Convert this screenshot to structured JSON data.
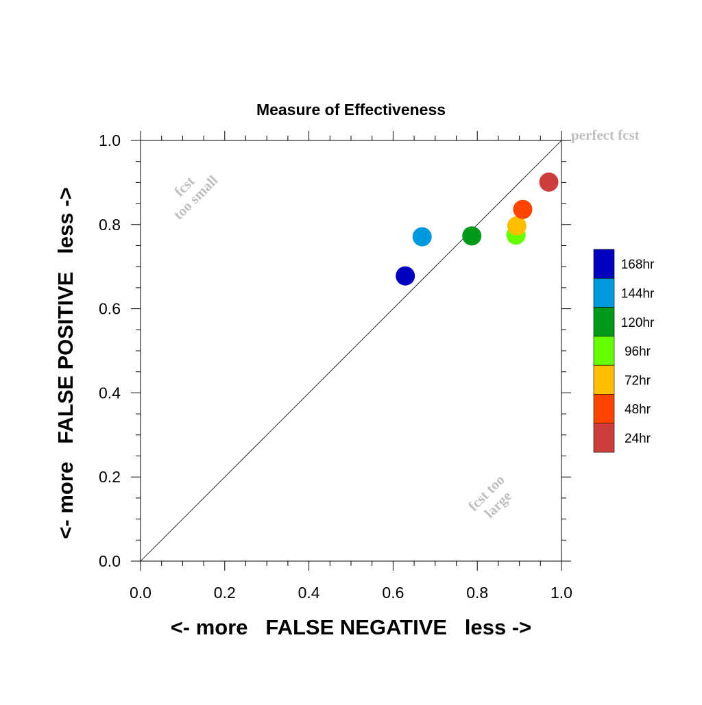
{
  "chart_data": {
    "type": "scatter",
    "title": "Measure of Effectiveness",
    "xlabel": "<- more   FALSE NEGATIVE   less ->",
    "ylabel": "<- more   FALSE POSITIVE   less ->",
    "xlim": [
      0.0,
      1.0
    ],
    "ylim": [
      0.0,
      1.0
    ],
    "xticks": [
      "0.0",
      "0.2",
      "0.4",
      "0.6",
      "0.8",
      "1.0"
    ],
    "yticks": [
      "0.0",
      "0.2",
      "0.4",
      "0.6",
      "0.8",
      "1.0"
    ],
    "grid": false,
    "reference_line": "diagonal y = x",
    "annotations": {
      "perfect": "perfect fcst",
      "too_small": [
        "fcst",
        "too small"
      ],
      "too_large": [
        "fcst too",
        "large"
      ]
    },
    "legend_position": "right",
    "series": [
      {
        "name": "168hr",
        "color": "#0000bf",
        "x": 0.629,
        "y": 0.678
      },
      {
        "name": "144hr",
        "color": "#0099dd",
        "x": 0.669,
        "y": 0.771
      },
      {
        "name": "120hr",
        "color": "#00991a",
        "x": 0.787,
        "y": 0.773
      },
      {
        "name": "96hr",
        "color": "#66ff00",
        "x": 0.892,
        "y": 0.775
      },
      {
        "name": "72hr",
        "color": "#ffbf00",
        "x": 0.894,
        "y": 0.797
      },
      {
        "name": "48hr",
        "color": "#ff4400",
        "x": 0.908,
        "y": 0.836
      },
      {
        "name": "24hr",
        "color": "#cc3d3d",
        "x": 0.97,
        "y": 0.901
      }
    ]
  }
}
